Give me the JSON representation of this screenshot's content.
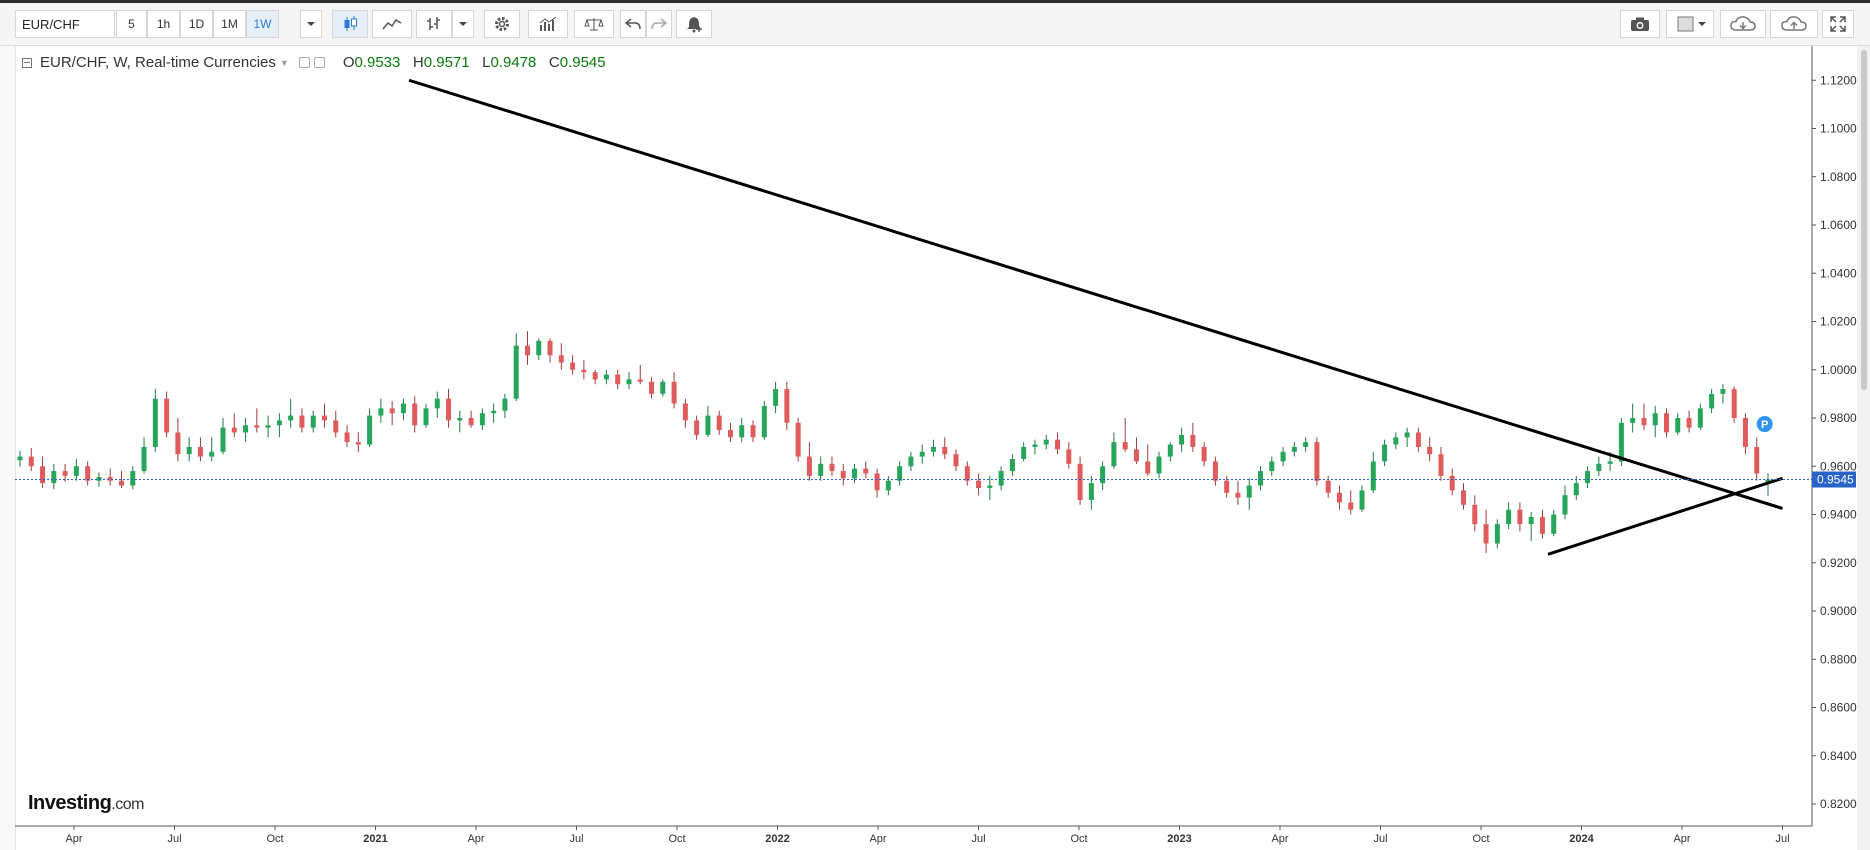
{
  "toolbar": {
    "symbol": "EUR/CHF",
    "intervals": [
      "5",
      "1h",
      "1D",
      "1M",
      "1W"
    ],
    "active_interval": "1W",
    "icons": [
      "dropdown-caret-icon",
      "candlestick-icon",
      "line-chart-icon",
      "bar-style-icon",
      "dropdown-caret-icon",
      "gear-icon",
      "indicators-icon",
      "compare-scale-icon",
      "undo-icon",
      "redo-icon",
      "alert-bell-icon",
      "camera-icon",
      "layout-icon",
      "dropdown-caret-icon",
      "cloud-download-icon",
      "cloud-upload-icon",
      "fullscreen-icon"
    ]
  },
  "legend": {
    "title": "EUR/CHF, W, Real-time Currencies",
    "open_label": "O",
    "open": "0.9533",
    "high_label": "H",
    "high": "0.9571",
    "low_label": "L",
    "low": "0.9478",
    "close_label": "C",
    "close": "0.9545"
  },
  "logo": {
    "brand": "Investing",
    "suffix": ".com"
  },
  "colors": {
    "up": "#26a65b",
    "down": "#e05c5c",
    "price_line": "#2962c9",
    "trendline": "#000000",
    "marker": "#2f96f0"
  },
  "chart_data": {
    "type": "candlestick",
    "title": "EUR/CHF, W, Real-time Currencies",
    "ylim": [
      0.81,
      1.13
    ],
    "yticks": [
      "0.8200",
      "0.8400",
      "0.8600",
      "0.8800",
      "0.9000",
      "0.9200",
      "0.9400",
      "0.9600",
      "0.9800",
      "1.0000",
      "1.0200",
      "1.0400",
      "1.0600",
      "1.0800",
      "1.1000",
      "1.1200"
    ],
    "xticks": [
      "Apr",
      "Jul",
      "Oct",
      "2021",
      "Apr",
      "Jul",
      "Oct",
      "2022",
      "Apr",
      "Jul",
      "Oct",
      "2023",
      "Apr",
      "Jul",
      "Oct",
      "2024",
      "Apr",
      "Jul"
    ],
    "xtick_dates": [
      "2020-04",
      "2020-07",
      "2020-10",
      "2021-01",
      "2021-04",
      "2021-07",
      "2021-10",
      "2022-01",
      "2022-04",
      "2022-07",
      "2022-10",
      "2023-01",
      "2023-04",
      "2023-07",
      "2023-10",
      "2024-01",
      "2024-04",
      "2024-07"
    ],
    "current_price": "0.9545",
    "price_marker_label": "P",
    "price_marker_value": 0.9775,
    "trendlines": [
      {
        "name": "descending-resistance",
        "start": [
          "2021-02",
          1.12
        ],
        "end": [
          "2024-07",
          0.9425
        ]
      },
      {
        "name": "ascending-support",
        "start": [
          "2023-12",
          0.9235
        ],
        "end": [
          "2024-07",
          0.955
        ]
      }
    ],
    "series": [
      {
        "values": [
          [
            0.9625,
            0.9665,
            0.9598,
            0.964
          ],
          [
            0.964,
            0.9675,
            0.958,
            0.96
          ],
          [
            0.96,
            0.964,
            0.951,
            0.953
          ],
          [
            0.953,
            0.961,
            0.9505,
            0.958
          ],
          [
            0.958,
            0.961,
            0.9535,
            0.956
          ],
          [
            0.956,
            0.963,
            0.954,
            0.96
          ],
          [
            0.96,
            0.962,
            0.952,
            0.954
          ],
          [
            0.954,
            0.9575,
            0.9515,
            0.9555
          ],
          [
            0.9555,
            0.959,
            0.952,
            0.954
          ],
          [
            0.954,
            0.958,
            0.951,
            0.952
          ],
          [
            0.952,
            0.96,
            0.9505,
            0.958
          ],
          [
            0.958,
            0.972,
            0.957,
            0.968
          ],
          [
            0.968,
            0.992,
            0.966,
            0.988
          ],
          [
            0.988,
            0.991,
            0.972,
            0.974
          ],
          [
            0.974,
            0.98,
            0.962,
            0.965
          ],
          [
            0.965,
            0.972,
            0.962,
            0.968
          ],
          [
            0.968,
            0.972,
            0.962,
            0.964
          ],
          [
            0.964,
            0.972,
            0.962,
            0.966
          ],
          [
            0.966,
            0.98,
            0.965,
            0.976
          ],
          [
            0.976,
            0.982,
            0.972,
            0.974
          ],
          [
            0.974,
            0.98,
            0.97,
            0.977
          ],
          [
            0.977,
            0.984,
            0.974,
            0.976
          ],
          [
            0.976,
            0.981,
            0.972,
            0.977
          ],
          [
            0.977,
            0.982,
            0.972,
            0.979
          ],
          [
            0.979,
            0.988,
            0.976,
            0.981
          ],
          [
            0.981,
            0.984,
            0.974,
            0.976
          ],
          [
            0.976,
            0.983,
            0.974,
            0.981
          ],
          [
            0.981,
            0.986,
            0.976,
            0.979
          ],
          [
            0.979,
            0.983,
            0.972,
            0.974
          ],
          [
            0.974,
            0.977,
            0.968,
            0.97
          ],
          [
            0.97,
            0.974,
            0.966,
            0.969
          ],
          [
            0.969,
            0.984,
            0.968,
            0.981
          ],
          [
            0.981,
            0.988,
            0.978,
            0.984
          ],
          [
            0.984,
            0.987,
            0.977,
            0.982
          ],
          [
            0.982,
            0.988,
            0.979,
            0.986
          ],
          [
            0.986,
            0.989,
            0.974,
            0.977
          ],
          [
            0.977,
            0.986,
            0.976,
            0.984
          ],
          [
            0.984,
            0.991,
            0.98,
            0.988
          ],
          [
            0.988,
            0.992,
            0.976,
            0.979
          ],
          [
            0.979,
            0.983,
            0.974,
            0.98
          ],
          [
            0.98,
            0.983,
            0.976,
            0.977
          ],
          [
            0.977,
            0.984,
            0.975,
            0.982
          ],
          [
            0.982,
            0.986,
            0.978,
            0.983
          ],
          [
            0.983,
            0.99,
            0.98,
            0.988
          ],
          [
            0.988,
            1.015,
            0.987,
            1.01
          ],
          [
            1.01,
            1.016,
            1.002,
            1.006
          ],
          [
            1.006,
            1.013,
            1.004,
            1.012
          ],
          [
            1.012,
            1.013,
            1.003,
            1.006
          ],
          [
            1.006,
            1.011,
            1.0,
            1.003
          ],
          [
            1.003,
            1.006,
            0.998,
            1.0
          ],
          [
            1.0,
            1.004,
            0.996,
            0.999
          ],
          [
            0.999,
            1.0,
            0.994,
            0.996
          ],
          [
            0.996,
            1.0,
            0.994,
            0.998
          ],
          [
            0.998,
            1.0,
            0.992,
            0.994
          ],
          [
            0.994,
            0.999,
            0.992,
            0.996
          ],
          [
            0.996,
            1.002,
            0.994,
            0.995
          ],
          [
            0.995,
            0.997,
            0.988,
            0.99
          ],
          [
            0.99,
            0.996,
            0.989,
            0.995
          ],
          [
            0.995,
            0.999,
            0.984,
            0.986
          ],
          [
            0.986,
            0.988,
            0.976,
            0.979
          ],
          [
            0.979,
            0.981,
            0.971,
            0.973
          ],
          [
            0.973,
            0.985,
            0.972,
            0.981
          ],
          [
            0.981,
            0.983,
            0.973,
            0.975
          ],
          [
            0.975,
            0.978,
            0.97,
            0.972
          ],
          [
            0.972,
            0.98,
            0.97,
            0.977
          ],
          [
            0.977,
            0.979,
            0.97,
            0.972
          ],
          [
            0.972,
            0.987,
            0.971,
            0.985
          ],
          [
            0.985,
            0.995,
            0.982,
            0.992
          ],
          [
            0.992,
            0.995,
            0.975,
            0.978
          ],
          [
            0.978,
            0.98,
            0.962,
            0.964
          ],
          [
            0.964,
            0.97,
            0.954,
            0.956
          ],
          [
            0.956,
            0.964,
            0.954,
            0.961
          ],
          [
            0.961,
            0.964,
            0.956,
            0.958
          ],
          [
            0.958,
            0.961,
            0.952,
            0.955
          ],
          [
            0.955,
            0.961,
            0.953,
            0.959
          ],
          [
            0.959,
            0.962,
            0.955,
            0.957
          ],
          [
            0.957,
            0.959,
            0.947,
            0.95
          ],
          [
            0.95,
            0.956,
            0.948,
            0.954
          ],
          [
            0.954,
            0.962,
            0.952,
            0.96
          ],
          [
            0.96,
            0.966,
            0.958,
            0.964
          ],
          [
            0.964,
            0.969,
            0.961,
            0.966
          ],
          [
            0.966,
            0.971,
            0.964,
            0.968
          ],
          [
            0.968,
            0.972,
            0.963,
            0.965
          ],
          [
            0.965,
            0.967,
            0.958,
            0.96
          ],
          [
            0.96,
            0.962,
            0.952,
            0.954
          ],
          [
            0.954,
            0.957,
            0.948,
            0.951
          ],
          [
            0.951,
            0.956,
            0.946,
            0.952
          ],
          [
            0.952,
            0.96,
            0.95,
            0.958
          ],
          [
            0.958,
            0.965,
            0.956,
            0.963
          ],
          [
            0.963,
            0.97,
            0.962,
            0.968
          ],
          [
            0.968,
            0.971,
            0.965,
            0.969
          ],
          [
            0.969,
            0.973,
            0.967,
            0.971
          ],
          [
            0.971,
            0.974,
            0.965,
            0.967
          ],
          [
            0.967,
            0.97,
            0.959,
            0.961
          ],
          [
            0.961,
            0.964,
            0.944,
            0.946
          ],
          [
            0.946,
            0.956,
            0.942,
            0.953
          ],
          [
            0.953,
            0.962,
            0.95,
            0.96
          ],
          [
            0.96,
            0.974,
            0.959,
            0.97
          ],
          [
            0.97,
            0.98,
            0.966,
            0.967
          ],
          [
            0.967,
            0.972,
            0.961,
            0.962
          ],
          [
            0.962,
            0.969,
            0.956,
            0.957
          ],
          [
            0.957,
            0.966,
            0.955,
            0.964
          ],
          [
            0.964,
            0.97,
            0.962,
            0.969
          ],
          [
            0.969,
            0.976,
            0.966,
            0.973
          ],
          [
            0.973,
            0.978,
            0.966,
            0.968
          ],
          [
            0.968,
            0.97,
            0.96,
            0.962
          ],
          [
            0.962,
            0.964,
            0.952,
            0.954
          ],
          [
            0.954,
            0.956,
            0.947,
            0.949
          ],
          [
            0.949,
            0.954,
            0.944,
            0.947
          ],
          [
            0.947,
            0.955,
            0.942,
            0.952
          ],
          [
            0.952,
            0.96,
            0.95,
            0.958
          ],
          [
            0.958,
            0.964,
            0.956,
            0.962
          ],
          [
            0.962,
            0.968,
            0.96,
            0.966
          ],
          [
            0.966,
            0.97,
            0.964,
            0.968
          ],
          [
            0.968,
            0.972,
            0.966,
            0.97
          ],
          [
            0.97,
            0.972,
            0.952,
            0.954
          ],
          [
            0.954,
            0.956,
            0.947,
            0.949
          ],
          [
            0.949,
            0.952,
            0.942,
            0.945
          ],
          [
            0.945,
            0.95,
            0.94,
            0.942
          ],
          [
            0.942,
            0.952,
            0.941,
            0.95
          ],
          [
            0.95,
            0.966,
            0.949,
            0.962
          ],
          [
            0.962,
            0.971,
            0.96,
            0.969
          ],
          [
            0.969,
            0.974,
            0.967,
            0.972
          ],
          [
            0.972,
            0.976,
            0.968,
            0.974
          ],
          [
            0.974,
            0.976,
            0.966,
            0.968
          ],
          [
            0.968,
            0.972,
            0.962,
            0.965
          ],
          [
            0.965,
            0.968,
            0.954,
            0.956
          ],
          [
            0.956,
            0.959,
            0.948,
            0.95
          ],
          [
            0.95,
            0.953,
            0.942,
            0.944
          ],
          [
            0.944,
            0.948,
            0.933,
            0.936
          ],
          [
            0.936,
            0.942,
            0.924,
            0.928
          ],
          [
            0.928,
            0.938,
            0.926,
            0.936
          ],
          [
            0.936,
            0.945,
            0.934,
            0.942
          ],
          [
            0.942,
            0.945,
            0.933,
            0.936
          ],
          [
            0.936,
            0.941,
            0.929,
            0.939
          ],
          [
            0.939,
            0.942,
            0.93,
            0.932
          ],
          [
            0.932,
            0.942,
            0.931,
            0.94
          ],
          [
            0.94,
            0.952,
            0.938,
            0.948
          ],
          [
            0.948,
            0.956,
            0.946,
            0.953
          ],
          [
            0.953,
            0.96,
            0.951,
            0.958
          ],
          [
            0.958,
            0.964,
            0.956,
            0.961
          ],
          [
            0.961,
            0.966,
            0.958,
            0.962
          ],
          [
            0.962,
            0.98,
            0.96,
            0.978
          ],
          [
            0.978,
            0.986,
            0.974,
            0.98
          ],
          [
            0.98,
            0.986,
            0.975,
            0.977
          ],
          [
            0.977,
            0.985,
            0.972,
            0.982
          ],
          [
            0.982,
            0.984,
            0.972,
            0.974
          ],
          [
            0.974,
            0.982,
            0.973,
            0.98
          ],
          [
            0.98,
            0.983,
            0.974,
            0.976
          ],
          [
            0.976,
            0.986,
            0.975,
            0.984
          ],
          [
            0.984,
            0.992,
            0.982,
            0.99
          ],
          [
            0.99,
            0.994,
            0.986,
            0.992
          ],
          [
            0.992,
            0.993,
            0.978,
            0.98
          ],
          [
            0.98,
            0.982,
            0.965,
            0.968
          ],
          [
            0.968,
            0.972,
            0.954,
            0.957
          ],
          [
            0.9533,
            0.9571,
            0.9478,
            0.9545
          ]
        ]
      }
    ]
  }
}
